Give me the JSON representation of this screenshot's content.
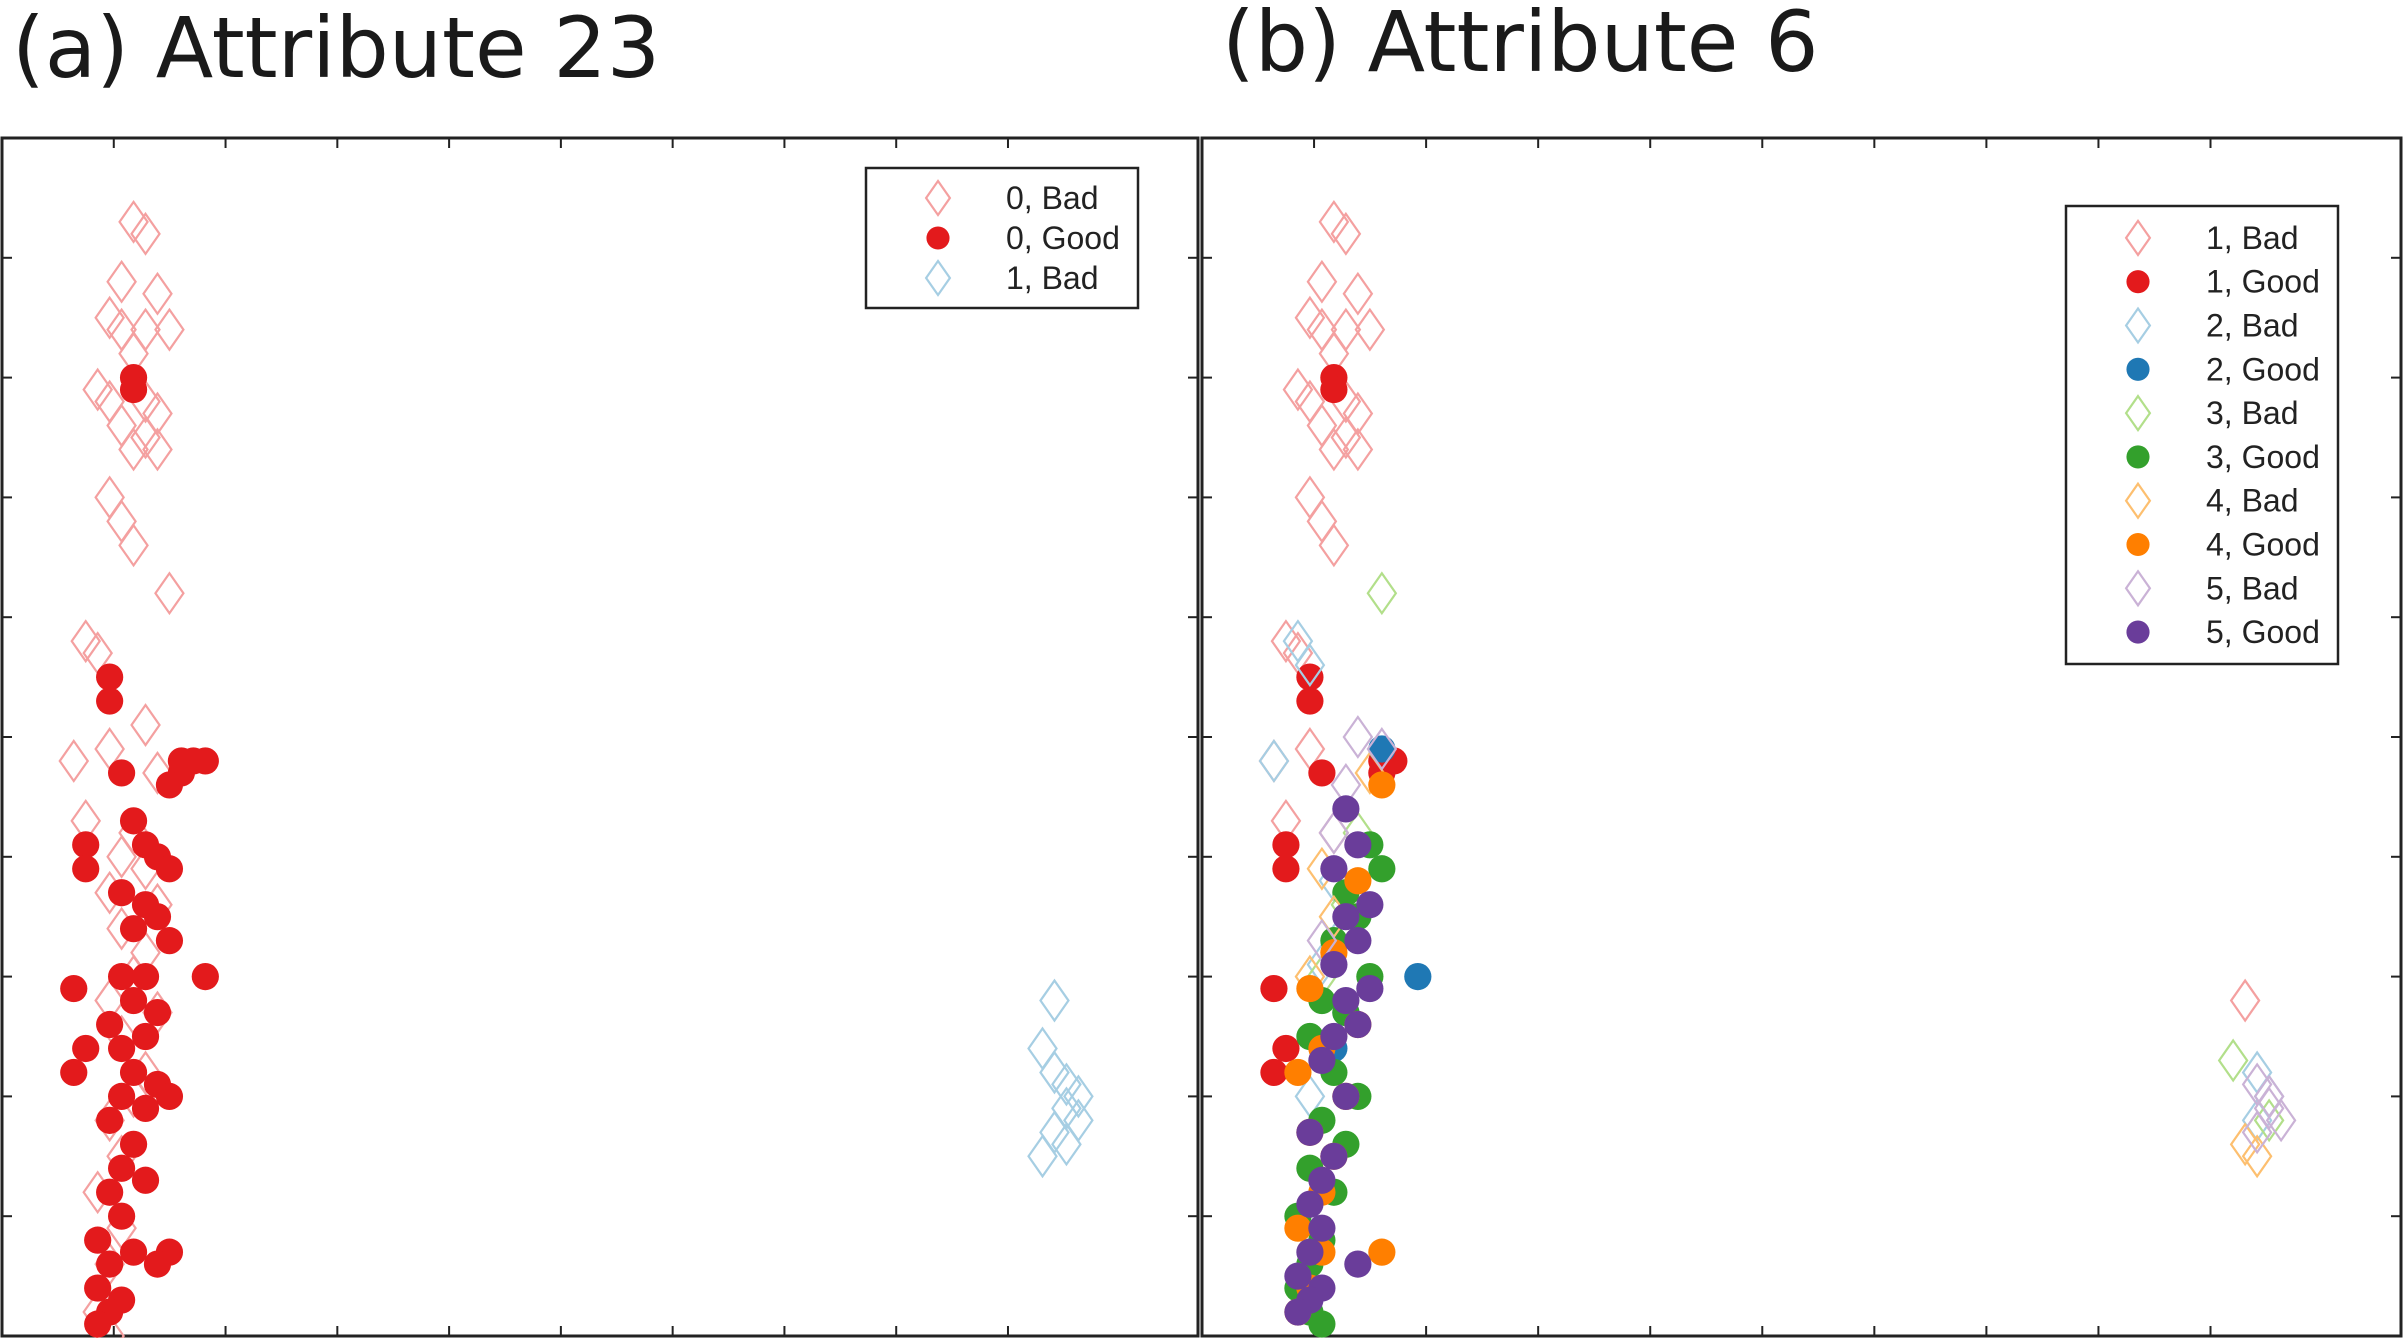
{
  "panels": [
    {
      "title": "(a) Attribute 23"
    },
    {
      "title": "(b) Attribute 6"
    }
  ],
  "chart_data": [
    {
      "type": "scatter",
      "title": "(a) Attribute 23",
      "xlabel": "",
      "ylabel": "",
      "xlim": [
        0,
        1
      ],
      "ylim": [
        0,
        1
      ],
      "grid": false,
      "tick_labels": false,
      "legend_position": "top-right",
      "series": [
        {
          "name": "0, Bad",
          "marker": "diamond-open",
          "color": "#f4a0a0",
          "points": [
            [
              0.11,
              0.93
            ],
            [
              0.12,
              0.92
            ],
            [
              0.1,
              0.88
            ],
            [
              0.13,
              0.87
            ],
            [
              0.09,
              0.85
            ],
            [
              0.1,
              0.84
            ],
            [
              0.12,
              0.84
            ],
            [
              0.14,
              0.84
            ],
            [
              0.11,
              0.82
            ],
            [
              0.08,
              0.79
            ],
            [
              0.09,
              0.78
            ],
            [
              0.12,
              0.78
            ],
            [
              0.13,
              0.77
            ],
            [
              0.1,
              0.76
            ],
            [
              0.12,
              0.75
            ],
            [
              0.11,
              0.74
            ],
            [
              0.13,
              0.74
            ],
            [
              0.09,
              0.7
            ],
            [
              0.1,
              0.68
            ],
            [
              0.11,
              0.66
            ],
            [
              0.14,
              0.62
            ],
            [
              0.07,
              0.58
            ],
            [
              0.08,
              0.57
            ],
            [
              0.12,
              0.51
            ],
            [
              0.06,
              0.48
            ],
            [
              0.09,
              0.49
            ],
            [
              0.13,
              0.47
            ],
            [
              0.07,
              0.43
            ],
            [
              0.11,
              0.42
            ],
            [
              0.1,
              0.4
            ],
            [
              0.12,
              0.39
            ],
            [
              0.09,
              0.37
            ],
            [
              0.13,
              0.36
            ],
            [
              0.1,
              0.34
            ],
            [
              0.12,
              0.32
            ],
            [
              0.11,
              0.3
            ],
            [
              0.09,
              0.28
            ],
            [
              0.13,
              0.27
            ],
            [
              0.1,
              0.25
            ],
            [
              0.12,
              0.22
            ],
            [
              0.11,
              0.2
            ],
            [
              0.09,
              0.18
            ],
            [
              0.1,
              0.15
            ],
            [
              0.08,
              0.12
            ],
            [
              0.1,
              0.09
            ],
            [
              0.09,
              0.06
            ],
            [
              0.08,
              0.02
            ],
            [
              0.09,
              0.0
            ]
          ]
        },
        {
          "name": "0, Good",
          "marker": "circle",
          "color": "#e31a1c",
          "points": [
            [
              0.11,
              0.8
            ],
            [
              0.11,
              0.79
            ],
            [
              0.09,
              0.55
            ],
            [
              0.09,
              0.53
            ],
            [
              0.15,
              0.48
            ],
            [
              0.16,
              0.48
            ],
            [
              0.15,
              0.47
            ],
            [
              0.17,
              0.48
            ],
            [
              0.1,
              0.47
            ],
            [
              0.14,
              0.46
            ],
            [
              0.07,
              0.41
            ],
            [
              0.07,
              0.39
            ],
            [
              0.11,
              0.43
            ],
            [
              0.12,
              0.41
            ],
            [
              0.13,
              0.4
            ],
            [
              0.14,
              0.39
            ],
            [
              0.1,
              0.37
            ],
            [
              0.12,
              0.36
            ],
            [
              0.13,
              0.35
            ],
            [
              0.11,
              0.34
            ],
            [
              0.14,
              0.33
            ],
            [
              0.17,
              0.3
            ],
            [
              0.06,
              0.29
            ],
            [
              0.1,
              0.3
            ],
            [
              0.12,
              0.3
            ],
            [
              0.11,
              0.28
            ],
            [
              0.13,
              0.27
            ],
            [
              0.09,
              0.26
            ],
            [
              0.12,
              0.25
            ],
            [
              0.1,
              0.24
            ],
            [
              0.07,
              0.24
            ],
            [
              0.06,
              0.22
            ],
            [
              0.11,
              0.22
            ],
            [
              0.13,
              0.21
            ],
            [
              0.14,
              0.2
            ],
            [
              0.1,
              0.2
            ],
            [
              0.12,
              0.19
            ],
            [
              0.09,
              0.18
            ],
            [
              0.11,
              0.16
            ],
            [
              0.1,
              0.14
            ],
            [
              0.12,
              0.13
            ],
            [
              0.09,
              0.12
            ],
            [
              0.1,
              0.1
            ],
            [
              0.08,
              0.08
            ],
            [
              0.11,
              0.07
            ],
            [
              0.09,
              0.06
            ],
            [
              0.14,
              0.07
            ],
            [
              0.13,
              0.06
            ],
            [
              0.08,
              0.04
            ],
            [
              0.1,
              0.03
            ],
            [
              0.09,
              0.02
            ],
            [
              0.08,
              0.01
            ]
          ]
        },
        {
          "name": "1, Bad",
          "marker": "diamond-open",
          "color": "#a6cee3",
          "points": [
            [
              0.88,
              0.28
            ],
            [
              0.87,
              0.24
            ],
            [
              0.88,
              0.22
            ],
            [
              0.89,
              0.21
            ],
            [
              0.9,
              0.2
            ],
            [
              0.89,
              0.19
            ],
            [
              0.9,
              0.18
            ],
            [
              0.88,
              0.17
            ],
            [
              0.89,
              0.16
            ],
            [
              0.87,
              0.15
            ]
          ]
        }
      ]
    },
    {
      "type": "scatter",
      "title": "(b) Attribute 6",
      "xlabel": "",
      "ylabel": "",
      "xlim": [
        0,
        1
      ],
      "ylim": [
        0,
        1
      ],
      "grid": false,
      "tick_labels": false,
      "legend_position": "top-right",
      "series": [
        {
          "name": "1, Bad",
          "marker": "diamond-open",
          "color": "#f4a0a0",
          "points": [
            [
              0.11,
              0.93
            ],
            [
              0.12,
              0.92
            ],
            [
              0.1,
              0.88
            ],
            [
              0.13,
              0.87
            ],
            [
              0.09,
              0.85
            ],
            [
              0.1,
              0.84
            ],
            [
              0.12,
              0.84
            ],
            [
              0.14,
              0.84
            ],
            [
              0.11,
              0.82
            ],
            [
              0.08,
              0.79
            ],
            [
              0.09,
              0.78
            ],
            [
              0.12,
              0.78
            ],
            [
              0.13,
              0.77
            ],
            [
              0.1,
              0.76
            ],
            [
              0.12,
              0.75
            ],
            [
              0.11,
              0.74
            ],
            [
              0.13,
              0.74
            ],
            [
              0.09,
              0.7
            ],
            [
              0.1,
              0.68
            ],
            [
              0.11,
              0.66
            ],
            [
              0.07,
              0.58
            ],
            [
              0.08,
              0.57
            ],
            [
              0.06,
              0.48
            ],
            [
              0.09,
              0.49
            ],
            [
              0.07,
              0.43
            ],
            [
              0.11,
              0.42
            ],
            [
              0.87,
              0.28
            ]
          ]
        },
        {
          "name": "1, Good",
          "marker": "circle",
          "color": "#e31a1c",
          "points": [
            [
              0.11,
              0.8
            ],
            [
              0.11,
              0.79
            ],
            [
              0.09,
              0.55
            ],
            [
              0.09,
              0.53
            ],
            [
              0.15,
              0.48
            ],
            [
              0.16,
              0.48
            ],
            [
              0.15,
              0.47
            ],
            [
              0.1,
              0.47
            ],
            [
              0.07,
              0.41
            ],
            [
              0.07,
              0.39
            ],
            [
              0.06,
              0.29
            ],
            [
              0.07,
              0.24
            ],
            [
              0.06,
              0.22
            ]
          ]
        },
        {
          "name": "2, Bad",
          "marker": "diamond-open",
          "color": "#a6cee3",
          "points": [
            [
              0.08,
              0.58
            ],
            [
              0.09,
              0.56
            ],
            [
              0.06,
              0.48
            ],
            [
              0.11,
              0.38
            ],
            [
              0.12,
              0.34
            ],
            [
              0.1,
              0.31
            ],
            [
              0.09,
              0.2
            ],
            [
              0.88,
              0.22
            ],
            [
              0.89,
              0.2
            ],
            [
              0.88,
              0.18
            ]
          ]
        },
        {
          "name": "2, Good",
          "marker": "circle",
          "color": "#1f78b4",
          "points": [
            [
              0.15,
              0.49
            ],
            [
              0.18,
              0.3
            ],
            [
              0.12,
              0.27
            ],
            [
              0.11,
              0.24
            ]
          ]
        },
        {
          "name": "3, Bad",
          "marker": "diamond-open",
          "color": "#b2df8a",
          "points": [
            [
              0.15,
              0.62
            ],
            [
              0.13,
              0.42
            ],
            [
              0.12,
              0.36
            ],
            [
              0.1,
              0.3
            ],
            [
              0.86,
              0.23
            ],
            [
              0.89,
              0.18
            ]
          ]
        },
        {
          "name": "3, Good",
          "marker": "circle",
          "color": "#33a02c",
          "points": [
            [
              0.14,
              0.41
            ],
            [
              0.15,
              0.39
            ],
            [
              0.12,
              0.37
            ],
            [
              0.13,
              0.35
            ],
            [
              0.11,
              0.33
            ],
            [
              0.14,
              0.3
            ],
            [
              0.1,
              0.28
            ],
            [
              0.12,
              0.27
            ],
            [
              0.09,
              0.25
            ],
            [
              0.11,
              0.22
            ],
            [
              0.13,
              0.2
            ],
            [
              0.1,
              0.18
            ],
            [
              0.12,
              0.16
            ],
            [
              0.09,
              0.14
            ],
            [
              0.11,
              0.12
            ],
            [
              0.08,
              0.1
            ],
            [
              0.1,
              0.08
            ],
            [
              0.09,
              0.06
            ],
            [
              0.08,
              0.04
            ],
            [
              0.09,
              0.02
            ],
            [
              0.1,
              0.01
            ]
          ]
        },
        {
          "name": "4, Bad",
          "marker": "diamond-open",
          "color": "#fdbf6f",
          "points": [
            [
              0.14,
              0.47
            ],
            [
              0.1,
              0.39
            ],
            [
              0.11,
              0.35
            ],
            [
              0.09,
              0.3
            ],
            [
              0.87,
              0.16
            ],
            [
              0.88,
              0.15
            ]
          ]
        },
        {
          "name": "4, Good",
          "marker": "circle",
          "color": "#ff7f00",
          "points": [
            [
              0.15,
              0.46
            ],
            [
              0.13,
              0.38
            ],
            [
              0.11,
              0.32
            ],
            [
              0.09,
              0.29
            ],
            [
              0.13,
              0.26
            ],
            [
              0.1,
              0.24
            ],
            [
              0.08,
              0.22
            ],
            [
              0.12,
              0.2
            ],
            [
              0.09,
              0.17
            ],
            [
              0.11,
              0.15
            ],
            [
              0.1,
              0.12
            ],
            [
              0.08,
              0.09
            ],
            [
              0.1,
              0.07
            ],
            [
              0.09,
              0.04
            ],
            [
              0.08,
              0.02
            ],
            [
              0.15,
              0.07
            ]
          ]
        },
        {
          "name": "5, Bad",
          "marker": "diamond-open",
          "color": "#cab2d6",
          "points": [
            [
              0.13,
              0.5
            ],
            [
              0.15,
              0.49
            ],
            [
              0.12,
              0.46
            ],
            [
              0.11,
              0.42
            ],
            [
              0.1,
              0.33
            ],
            [
              0.88,
              0.21
            ],
            [
              0.89,
              0.19
            ],
            [
              0.88,
              0.17
            ],
            [
              0.9,
              0.18
            ],
            [
              0.89,
              0.2
            ]
          ]
        },
        {
          "name": "5, Good",
          "marker": "circle",
          "color": "#6a3d9a",
          "points": [
            [
              0.12,
              0.44
            ],
            [
              0.13,
              0.41
            ],
            [
              0.11,
              0.39
            ],
            [
              0.14,
              0.36
            ],
            [
              0.12,
              0.35
            ],
            [
              0.13,
              0.33
            ],
            [
              0.11,
              0.31
            ],
            [
              0.14,
              0.29
            ],
            [
              0.12,
              0.28
            ],
            [
              0.13,
              0.26
            ],
            [
              0.11,
              0.25
            ],
            [
              0.1,
              0.23
            ],
            [
              0.12,
              0.2
            ],
            [
              0.09,
              0.17
            ],
            [
              0.11,
              0.15
            ],
            [
              0.1,
              0.13
            ],
            [
              0.09,
              0.11
            ],
            [
              0.1,
              0.09
            ],
            [
              0.09,
              0.07
            ],
            [
              0.08,
              0.05
            ],
            [
              0.1,
              0.04
            ],
            [
              0.09,
              0.03
            ],
            [
              0.08,
              0.02
            ],
            [
              0.13,
              0.06
            ]
          ]
        }
      ]
    }
  ]
}
